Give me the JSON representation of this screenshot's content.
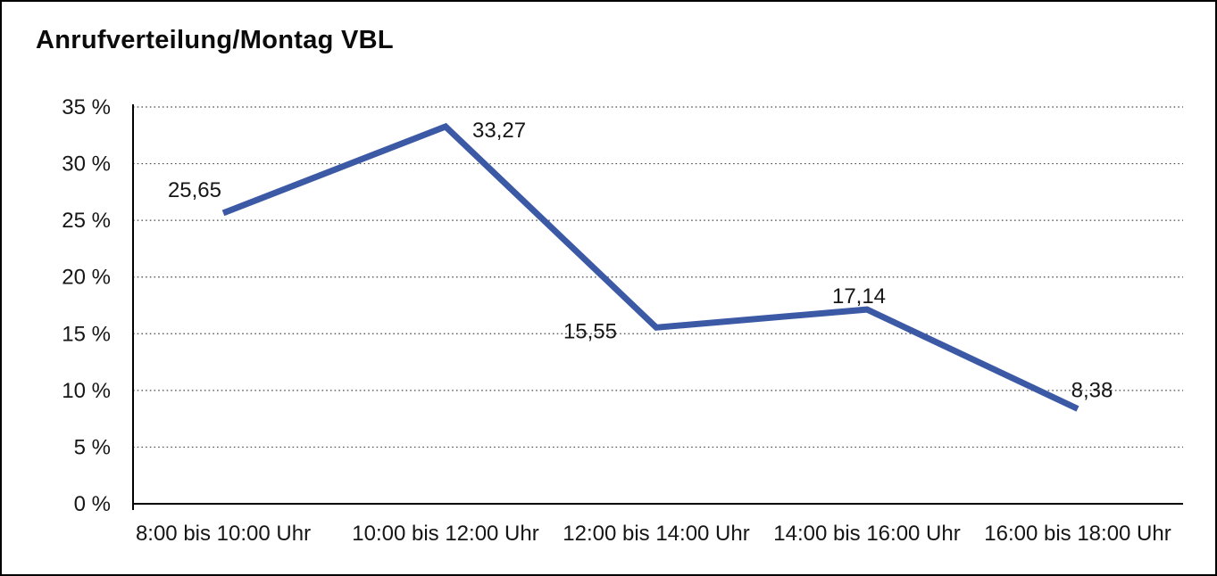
{
  "window": {
    "background": "#ffffff",
    "border_color": "#000000"
  },
  "chart_data": {
    "type": "line",
    "title": "Anrufverteilung/Montag VBL",
    "categories": [
      "8:00 bis 10:00 Uhr",
      "10:00 bis 12:00 Uhr",
      "12:00 bis 14:00 Uhr",
      "14:00 bis 16:00 Uhr",
      "16:00 bis 18:00 Uhr"
    ],
    "series": [
      {
        "values": [
          25.65,
          33.27,
          15.55,
          17.14,
          8.38
        ],
        "point_labels": [
          "25,65",
          "33,27",
          "15,55",
          "17,14",
          "8,38"
        ],
        "color": "#3B59A5"
      }
    ],
    "y_ticks": [
      {
        "value": 0,
        "label": "0 %"
      },
      {
        "value": 5,
        "label": "5 %"
      },
      {
        "value": 10,
        "label": "10 %"
      },
      {
        "value": 15,
        "label": "15 %"
      },
      {
        "value": 20,
        "label": "20 %"
      },
      {
        "value": 25,
        "label": "25 %"
      },
      {
        "value": 30,
        "label": "30 %"
      },
      {
        "value": 35,
        "label": "35 %"
      }
    ],
    "ylim": [
      0,
      35
    ],
    "xlabel": "",
    "ylabel": "",
    "grid": {
      "horizontal": true,
      "style": "dotted",
      "values": [
        5,
        10,
        15,
        20,
        25,
        30,
        35
      ]
    },
    "legend": "none"
  }
}
